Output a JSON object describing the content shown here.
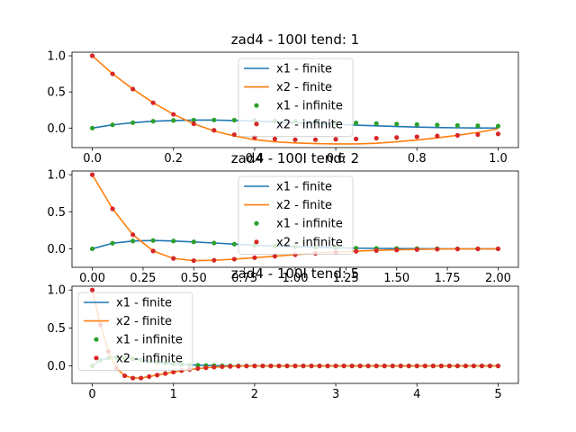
{
  "chart_data": [
    {
      "type": "line",
      "title": "zad4 - 100I tend: 1",
      "xlim": [
        -0.05,
        1.05
      ],
      "ylim": [
        -0.27,
        1.05
      ],
      "xticks": [
        "0.0",
        "0.2",
        "0.4",
        "0.6",
        "0.8",
        "1.0"
      ],
      "yticks": [
        "0.0",
        "0.5",
        "1.0"
      ],
      "legend_position": "upper center",
      "series": [
        {
          "name": "x1 - finite",
          "style": "line",
          "x": [
            0.0,
            0.05,
            0.1,
            0.15,
            0.2,
            0.25,
            0.3,
            0.35,
            0.4,
            0.45,
            0.5,
            0.55,
            0.6,
            0.65,
            0.7,
            0.75,
            0.8,
            0.85,
            0.9,
            0.95,
            1.0
          ],
          "y": [
            0.0,
            0.045,
            0.075,
            0.095,
            0.105,
            0.11,
            0.11,
            0.105,
            0.097,
            0.087,
            0.075,
            0.064,
            0.052,
            0.041,
            0.031,
            0.022,
            0.014,
            0.008,
            0.004,
            0.002,
            0.001
          ]
        },
        {
          "name": "x2 - finite",
          "style": "line",
          "x": [
            0.0,
            0.05,
            0.1,
            0.15,
            0.2,
            0.25,
            0.3,
            0.35,
            0.4,
            0.45,
            0.5,
            0.55,
            0.6,
            0.65,
            0.7,
            0.75,
            0.8,
            0.85,
            0.9,
            0.95,
            1.0
          ],
          "y": [
            1.0,
            0.75,
            0.54,
            0.35,
            0.19,
            0.06,
            -0.04,
            -0.11,
            -0.16,
            -0.19,
            -0.205,
            -0.215,
            -0.22,
            -0.22,
            -0.21,
            -0.19,
            -0.165,
            -0.135,
            -0.1,
            -0.06,
            -0.01
          ]
        },
        {
          "name": "x1 - infinite",
          "style": "dots",
          "x": [
            0.0,
            0.05,
            0.1,
            0.15,
            0.2,
            0.25,
            0.3,
            0.35,
            0.4,
            0.45,
            0.5,
            0.55,
            0.6,
            0.65,
            0.7,
            0.75,
            0.8,
            0.85,
            0.9,
            0.95,
            1.0
          ],
          "y": [
            0.0,
            0.045,
            0.075,
            0.095,
            0.105,
            0.11,
            0.112,
            0.11,
            0.105,
            0.1,
            0.093,
            0.086,
            0.078,
            0.071,
            0.063,
            0.056,
            0.049,
            0.043,
            0.037,
            0.032,
            0.027
          ]
        },
        {
          "name": "x2 - infinite",
          "style": "dots",
          "x": [
            0.0,
            0.05,
            0.1,
            0.15,
            0.2,
            0.25,
            0.3,
            0.35,
            0.4,
            0.45,
            0.5,
            0.55,
            0.6,
            0.65,
            0.7,
            0.75,
            0.8,
            0.85,
            0.9,
            0.95,
            1.0
          ],
          "y": [
            1.0,
            0.75,
            0.54,
            0.35,
            0.19,
            0.06,
            -0.03,
            -0.09,
            -0.13,
            -0.15,
            -0.16,
            -0.16,
            -0.155,
            -0.15,
            -0.14,
            -0.13,
            -0.12,
            -0.11,
            -0.1,
            -0.09,
            -0.08
          ]
        }
      ]
    },
    {
      "type": "line",
      "title": "zad4 - 100I tend: 2",
      "xlim": [
        -0.1,
        2.1
      ],
      "ylim": [
        -0.25,
        1.05
      ],
      "xticks": [
        "0.00",
        "0.25",
        "0.50",
        "0.75",
        "1.00",
        "1.25",
        "1.50",
        "1.75",
        "2.00"
      ],
      "yticks": [
        "0.0",
        "0.5",
        "1.0"
      ],
      "legend_position": "upper center",
      "series": [
        {
          "name": "x1 - finite",
          "style": "line",
          "x": [
            0.0,
            0.1,
            0.2,
            0.3,
            0.4,
            0.5,
            0.6,
            0.7,
            0.8,
            0.9,
            1.0,
            1.1,
            1.2,
            1.3,
            1.4,
            1.5,
            1.6,
            1.7,
            1.8,
            1.9,
            2.0
          ],
          "y": [
            0.0,
            0.075,
            0.105,
            0.112,
            0.105,
            0.093,
            0.078,
            0.063,
            0.049,
            0.037,
            0.027,
            0.019,
            0.013,
            0.008,
            0.005,
            0.003,
            0.001,
            0.0,
            -0.001,
            -0.001,
            0.0
          ]
        },
        {
          "name": "x2 - finite",
          "style": "line",
          "x": [
            0.0,
            0.1,
            0.2,
            0.3,
            0.4,
            0.5,
            0.6,
            0.7,
            0.8,
            0.9,
            1.0,
            1.1,
            1.2,
            1.3,
            1.4,
            1.5,
            1.6,
            1.7,
            1.8,
            1.9,
            2.0
          ],
          "y": [
            1.0,
            0.54,
            0.19,
            -0.03,
            -0.13,
            -0.16,
            -0.155,
            -0.14,
            -0.12,
            -0.1,
            -0.08,
            -0.06,
            -0.045,
            -0.032,
            -0.022,
            -0.014,
            -0.008,
            -0.004,
            -0.002,
            -0.001,
            0.0
          ]
        },
        {
          "name": "x1 - infinite",
          "style": "dots",
          "x": [
            0.0,
            0.1,
            0.2,
            0.3,
            0.4,
            0.5,
            0.6,
            0.7,
            0.8,
            0.9,
            1.0,
            1.1,
            1.2,
            1.3,
            1.4,
            1.5,
            1.6,
            1.7,
            1.8,
            1.9,
            2.0
          ],
          "y": [
            0.0,
            0.075,
            0.105,
            0.112,
            0.105,
            0.093,
            0.078,
            0.063,
            0.049,
            0.037,
            0.027,
            0.02,
            0.014,
            0.009,
            0.006,
            0.004,
            0.002,
            0.001,
            0.0,
            0.0,
            0.0
          ]
        },
        {
          "name": "x2 - infinite",
          "style": "dots",
          "x": [
            0.0,
            0.1,
            0.2,
            0.3,
            0.4,
            0.5,
            0.6,
            0.7,
            0.8,
            0.9,
            1.0,
            1.1,
            1.2,
            1.3,
            1.4,
            1.5,
            1.6,
            1.7,
            1.8,
            1.9,
            2.0
          ],
          "y": [
            1.0,
            0.54,
            0.19,
            -0.03,
            -0.13,
            -0.16,
            -0.155,
            -0.14,
            -0.12,
            -0.1,
            -0.08,
            -0.062,
            -0.047,
            -0.034,
            -0.024,
            -0.016,
            -0.01,
            -0.006,
            -0.003,
            -0.001,
            0.0
          ]
        }
      ]
    },
    {
      "type": "line",
      "title": "zad4 - 100I tend: 5",
      "xlim": [
        -0.25,
        5.25
      ],
      "ylim": [
        -0.23,
        1.05
      ],
      "xticks": [
        "0",
        "1",
        "2",
        "3",
        "4",
        "5"
      ],
      "yticks": [
        "0.0",
        "0.5",
        "1.0"
      ],
      "legend_position": "upper left",
      "series": [
        {
          "name": "x1 - finite",
          "style": "line",
          "x": [
            0.0,
            0.1,
            0.2,
            0.3,
            0.4,
            0.5,
            0.6,
            0.7,
            0.8,
            0.9,
            1.0,
            1.2,
            1.4,
            1.6,
            1.8,
            2.0,
            2.5,
            3.0,
            3.5,
            4.0,
            4.5,
            5.0
          ],
          "y": [
            0.0,
            0.075,
            0.105,
            0.112,
            0.105,
            0.093,
            0.078,
            0.063,
            0.049,
            0.037,
            0.027,
            0.014,
            0.006,
            0.002,
            0.0,
            0.0,
            0.0,
            0.0,
            0.0,
            0.0,
            0.0,
            0.0
          ]
        },
        {
          "name": "x2 - finite",
          "style": "line",
          "x": [
            0.0,
            0.1,
            0.2,
            0.3,
            0.4,
            0.5,
            0.6,
            0.7,
            0.8,
            0.9,
            1.0,
            1.2,
            1.4,
            1.6,
            1.8,
            2.0,
            2.5,
            3.0,
            3.5,
            4.0,
            4.5,
            5.0
          ],
          "y": [
            1.0,
            0.54,
            0.19,
            -0.03,
            -0.13,
            -0.16,
            -0.16,
            -0.14,
            -0.12,
            -0.1,
            -0.08,
            -0.047,
            -0.024,
            -0.01,
            -0.003,
            0.0,
            0.0,
            0.0,
            0.0,
            0.0,
            0.0,
            0.0
          ]
        },
        {
          "name": "x1 - infinite",
          "style": "dots",
          "x": [
            0.0,
            0.1,
            0.2,
            0.3,
            0.4,
            0.5,
            0.6,
            0.7,
            0.8,
            0.9,
            1.0,
            1.1,
            1.2,
            1.3,
            1.4,
            1.5,
            1.6,
            1.7,
            1.8,
            1.9,
            2.0,
            2.1,
            2.2,
            2.3,
            2.4,
            2.5,
            2.6,
            2.7,
            2.8,
            2.9,
            3.0,
            3.1,
            3.2,
            3.3,
            3.4,
            3.5,
            3.6,
            3.7,
            3.8,
            3.9,
            4.0,
            4.1,
            4.2,
            4.3,
            4.4,
            4.5,
            4.6,
            4.7,
            4.8,
            4.9,
            5.0
          ],
          "y": [
            0.0,
            0.075,
            0.105,
            0.112,
            0.105,
            0.093,
            0.078,
            0.063,
            0.049,
            0.037,
            0.027,
            0.02,
            0.014,
            0.009,
            0.006,
            0.004,
            0.002,
            0.001,
            0.0,
            0.0,
            0.0,
            0.0,
            0.0,
            0.0,
            0.0,
            0.0,
            0.0,
            0.0,
            0.0,
            0.0,
            0.0,
            0.0,
            0.0,
            0.0,
            0.0,
            0.0,
            0.0,
            0.0,
            0.0,
            0.0,
            0.0,
            0.0,
            0.0,
            0.0,
            0.0,
            0.0,
            0.0,
            0.0,
            0.0,
            0.0,
            0.0
          ]
        },
        {
          "name": "x2 - infinite",
          "style": "dots",
          "x": [
            0.0,
            0.1,
            0.2,
            0.3,
            0.4,
            0.5,
            0.6,
            0.7,
            0.8,
            0.9,
            1.0,
            1.1,
            1.2,
            1.3,
            1.4,
            1.5,
            1.6,
            1.7,
            1.8,
            1.9,
            2.0,
            2.1,
            2.2,
            2.3,
            2.4,
            2.5,
            2.6,
            2.7,
            2.8,
            2.9,
            3.0,
            3.1,
            3.2,
            3.3,
            3.4,
            3.5,
            3.6,
            3.7,
            3.8,
            3.9,
            4.0,
            4.1,
            4.2,
            4.3,
            4.4,
            4.5,
            4.6,
            4.7,
            4.8,
            4.9,
            5.0
          ],
          "y": [
            1.0,
            0.54,
            0.19,
            -0.03,
            -0.13,
            -0.16,
            -0.16,
            -0.14,
            -0.12,
            -0.1,
            -0.08,
            -0.062,
            -0.047,
            -0.034,
            -0.024,
            -0.016,
            -0.01,
            -0.006,
            -0.003,
            -0.001,
            0.0,
            0.0,
            0.0,
            0.0,
            0.0,
            0.0,
            0.0,
            0.0,
            0.0,
            0.0,
            0.0,
            0.0,
            0.0,
            0.0,
            0.0,
            0.0,
            0.0,
            0.0,
            0.0,
            0.0,
            0.0,
            0.0,
            0.0,
            0.0,
            0.0,
            0.0,
            0.0,
            0.0,
            0.0,
            0.0,
            0.0
          ]
        }
      ]
    }
  ],
  "colors": {
    "x1_finite": "#1f77b4",
    "x2_finite": "#ff7f0e",
    "x1_infinite": "#2ca02c",
    "x2_infinite": "#d62728"
  }
}
